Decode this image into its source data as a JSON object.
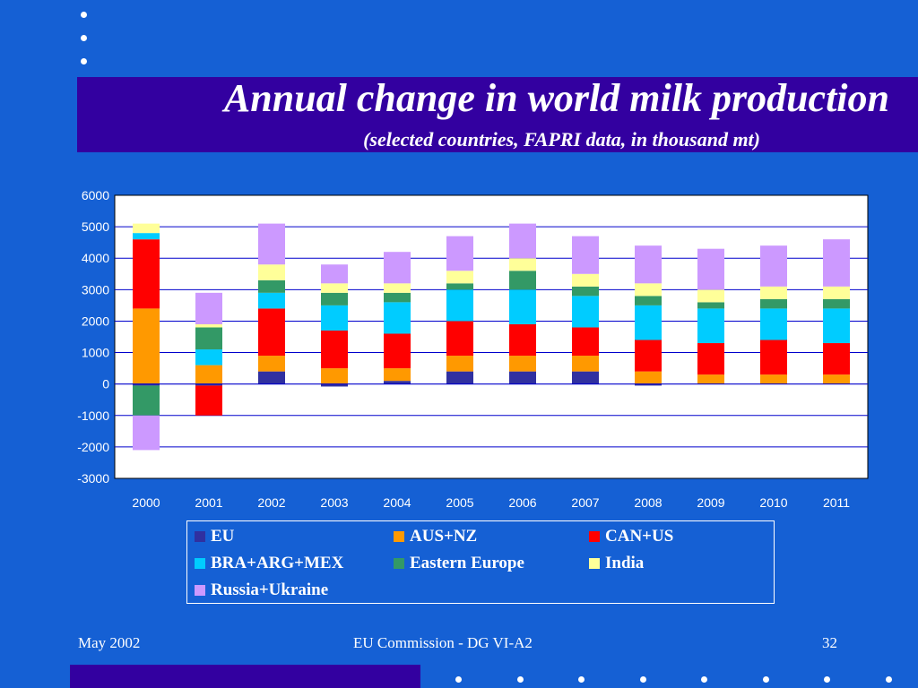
{
  "title": "Annual change in world milk production",
  "subtitle": "(selected countries, FAPRI data, in thousand mt)",
  "footer": {
    "date": "May 2002",
    "source": "EU Commission - DG VI-A2",
    "page": "32"
  },
  "chart_data": {
    "type": "bar",
    "stacked": true,
    "title": "",
    "xlabel": "",
    "ylabel": "",
    "ylim": [
      -3000,
      6000
    ],
    "yticks": [
      6000,
      5000,
      4000,
      3000,
      2000,
      1000,
      0,
      -1000,
      -2000,
      -3000
    ],
    "categories": [
      "2000",
      "2001",
      "2002",
      "2003",
      "2004",
      "2005",
      "2006",
      "2007",
      "2008",
      "2009",
      "2010",
      "2011"
    ],
    "grid": true,
    "legend_position": "bottom",
    "series": [
      {
        "name": "EU",
        "color": "#3030a0",
        "values": [
          -50,
          -50,
          400,
          -80,
          100,
          400,
          400,
          400,
          -50,
          0,
          0,
          0
        ]
      },
      {
        "name": "AUS+NZ",
        "color": "#ff9900",
        "values": [
          2400,
          600,
          500,
          500,
          400,
          500,
          500,
          500,
          400,
          300,
          300,
          300
        ]
      },
      {
        "name": "CAN+US",
        "color": "#ff0000",
        "values": [
          2200,
          -950,
          1500,
          1200,
          1100,
          1100,
          1000,
          900,
          1000,
          1000,
          1100,
          1000
        ]
      },
      {
        "name": "BRA+ARG+MEX",
        "color": "#00ccff",
        "values": [
          200,
          500,
          500,
          800,
          1000,
          1000,
          1100,
          1000,
          1100,
          1100,
          1000,
          1100
        ]
      },
      {
        "name": "Eastern Europe",
        "color": "#339966",
        "values": [
          -950,
          700,
          400,
          400,
          300,
          200,
          600,
          300,
          300,
          200,
          300,
          300
        ]
      },
      {
        "name": "India",
        "color": "#ffff99",
        "values": [
          300,
          100,
          500,
          300,
          300,
          400,
          400,
          400,
          400,
          400,
          400,
          400
        ]
      },
      {
        "name": "Russia+Ukraine",
        "color": "#cc99ff",
        "values": [
          -1100,
          1000,
          1300,
          600,
          1000,
          1100,
          1100,
          1200,
          1200,
          1300,
          1300,
          1500
        ]
      }
    ]
  }
}
